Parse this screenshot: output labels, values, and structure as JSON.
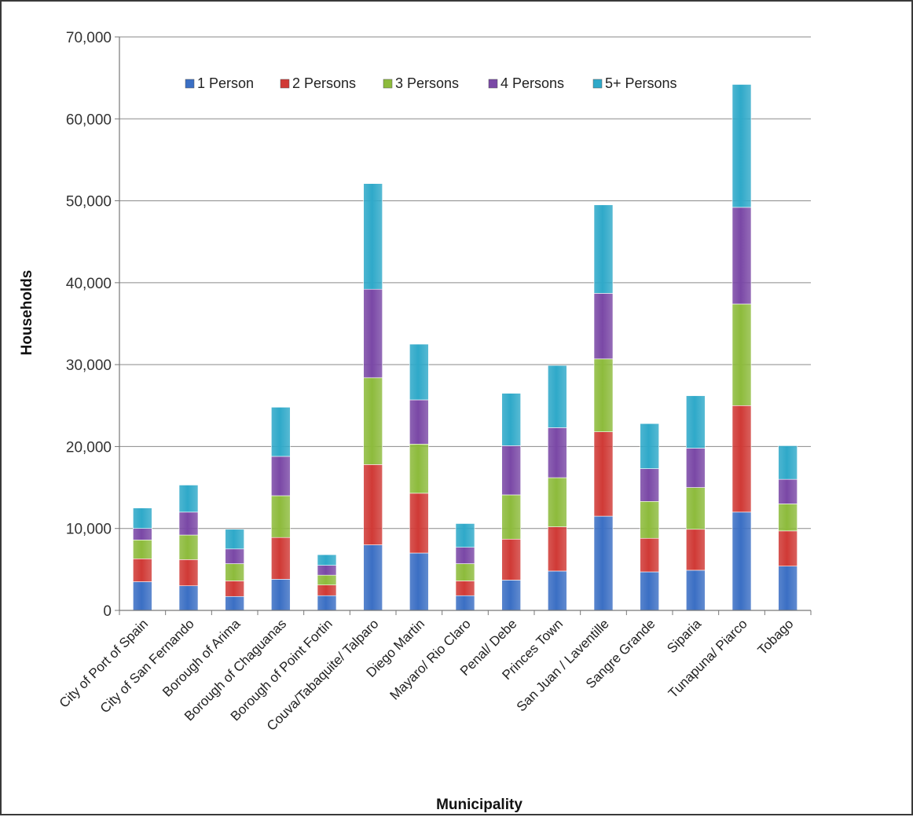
{
  "chart_data": {
    "type": "bar",
    "stacked": true,
    "title": "",
    "xlabel": "Municipality",
    "ylabel": "Households",
    "ylim": [
      0,
      70000
    ],
    "yticks": [
      0,
      10000,
      20000,
      30000,
      40000,
      50000,
      60000,
      70000
    ],
    "ytick_labels": [
      "0",
      "10,000",
      "20,000",
      "30,000",
      "40,000",
      "50,000",
      "60,000",
      "70,000"
    ],
    "grid": true,
    "legend_position": "top-center",
    "categories": [
      "City of Port of Spain",
      "City of San Fernando",
      "Borough of Arima",
      "Borough of Chaguanas",
      "Borough of Point Fortin",
      "Couva/Tabaquite/ Talparo",
      "Diego Martin",
      "Mayaro/ Rio Claro",
      "Penal/ Debe",
      "Princes Town",
      "San Juan / Laventille",
      "Sangre Grande",
      "Siparia",
      "Tunapuna/ Piarco",
      "Tobago"
    ],
    "series": [
      {
        "name": "1 Person",
        "color": "#3b6fc4",
        "values": [
          3500,
          3000,
          1700,
          3800,
          1800,
          8000,
          7000,
          1800,
          3700,
          4800,
          11500,
          4700,
          4900,
          12000,
          5400
        ]
      },
      {
        "name": "2 Persons",
        "color": "#d03a36",
        "values": [
          2800,
          3200,
          1900,
          5100,
          1300,
          9800,
          7300,
          1800,
          5000,
          5400,
          10300,
          4100,
          5000,
          13000,
          4300
        ]
      },
      {
        "name": "3 Persons",
        "color": "#8dbb3c",
        "values": [
          2300,
          3000,
          2100,
          5100,
          1200,
          10600,
          6000,
          2100,
          5400,
          6000,
          8900,
          4500,
          5100,
          12400,
          3300
        ]
      },
      {
        "name": "4 Persons",
        "color": "#7a48a6",
        "values": [
          1400,
          2800,
          1800,
          4800,
          1200,
          10800,
          5400,
          2000,
          6000,
          6100,
          8000,
          4000,
          4800,
          11800,
          3000
        ]
      },
      {
        "name": "5+ Persons",
        "color": "#2fa9c9",
        "values": [
          2500,
          3300,
          2400,
          6000,
          1300,
          12900,
          6800,
          2900,
          6400,
          7600,
          10800,
          5500,
          6400,
          15000,
          4100
        ]
      }
    ]
  }
}
